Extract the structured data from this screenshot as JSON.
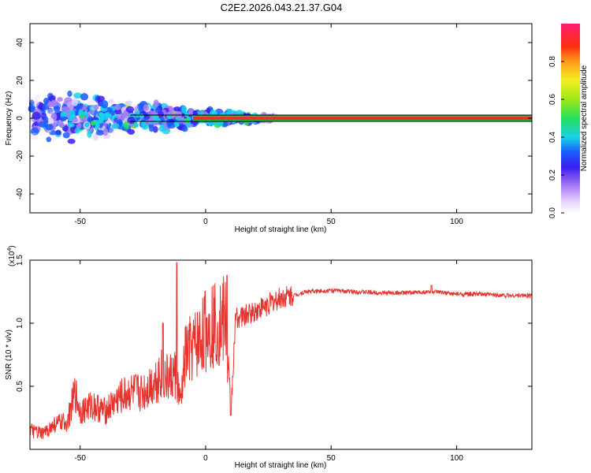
{
  "title": "C2E2.2026.043.21.37.G04",
  "colors": {
    "snr_line": "#e8322e",
    "ridge_outer": "#21c23a",
    "ridge_inner": "#e8322e",
    "background": "#ffffff"
  },
  "chart_data": [
    {
      "type": "heatmap",
      "name": "spectrogram",
      "xlabel": "Height of straight line (km)",
      "ylabel": "Frequency (Hz)",
      "xlim": [
        -70,
        130
      ],
      "ylim": [
        -50,
        50
      ],
      "xticks": [
        -50,
        0,
        50,
        100
      ],
      "yticks": [
        -40,
        -20,
        0,
        20,
        40
      ],
      "xtick_labels": [
        "-50",
        "0",
        "50",
        "100"
      ],
      "ytick_labels": [
        "-40",
        "-20",
        "0",
        "20",
        "40"
      ],
      "ridge_frequency_hz": 0,
      "ridge_x_range": [
        -5,
        130
      ],
      "scatter_x_range": [
        -70,
        28
      ],
      "colorbar": {
        "label": "Normalized spectral amplitude",
        "range": [
          0.0,
          1.0
        ],
        "ticks": [
          0.0,
          0.2,
          0.4,
          0.6,
          0.8
        ],
        "tick_labels": [
          "0.0",
          "0.2",
          "0.4",
          "0.6",
          "0.8"
        ]
      }
    },
    {
      "type": "line",
      "name": "snr",
      "xlabel": "Height of straight line (km)",
      "ylabel": "SNR (10 * v/v)",
      "multiplier_label": "(x10",
      "multiplier_exp": "4",
      "multiplier_close": ")",
      "xlim": [
        -70,
        130
      ],
      "ylim": [
        0,
        1.5
      ],
      "xticks": [
        -50,
        0,
        50,
        100
      ],
      "yticks": [
        0.5,
        1.0,
        1.5
      ],
      "xtick_labels": [
        "-50",
        "0",
        "50",
        "100"
      ],
      "ytick_labels": [
        "0.5",
        "1.0",
        "1.5"
      ],
      "series": [
        {
          "name": "SNR",
          "x": [
            -70,
            -65,
            -60,
            -55,
            -52,
            -50,
            -45,
            -40,
            -35,
            -30,
            -25,
            -20,
            -18,
            -15,
            -12,
            -10,
            -8,
            -5,
            -3,
            0,
            3,
            5,
            8,
            10,
            12,
            15,
            20,
            25,
            30,
            35,
            40,
            50,
            60,
            70,
            80,
            90,
            100,
            110,
            120,
            130
          ],
          "y": [
            0.15,
            0.12,
            0.2,
            0.22,
            0.45,
            0.3,
            0.35,
            0.3,
            0.4,
            0.45,
            0.45,
            0.55,
            0.6,
            0.55,
            0.6,
            0.35,
            0.75,
            0.8,
            0.85,
            0.95,
            1.0,
            1.0,
            1.02,
            0.28,
            1.05,
            1.05,
            1.1,
            1.15,
            1.2,
            1.22,
            1.25,
            1.26,
            1.25,
            1.24,
            1.24,
            1.25,
            1.23,
            1.23,
            1.22,
            1.22
          ]
        }
      ],
      "peaks": [
        {
          "x": -11.5,
          "y": 1.48
        },
        {
          "x": 8.5,
          "y": 1.38
        },
        {
          "x": -17,
          "y": 1.0
        },
        {
          "x": 10,
          "y": 0.27
        },
        {
          "x": 90,
          "y": 1.3
        }
      ]
    }
  ]
}
